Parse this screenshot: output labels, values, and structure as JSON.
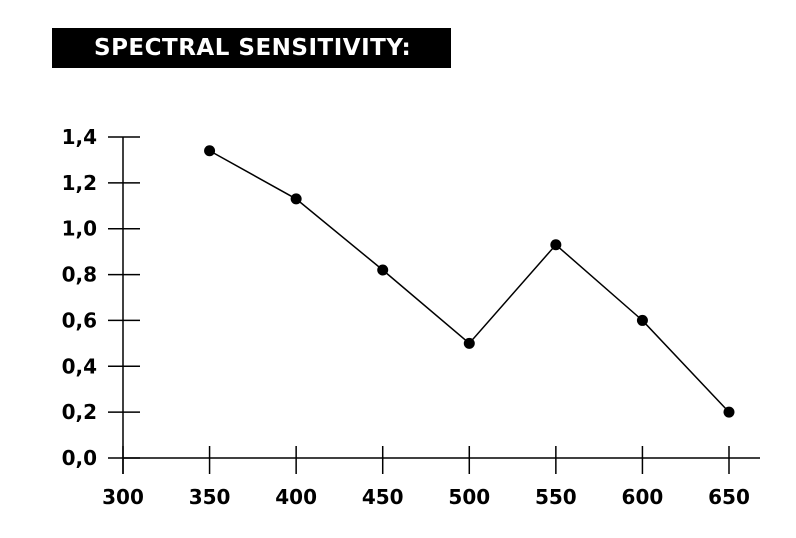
{
  "chart_data": {
    "type": "line",
    "title": "SPECTRAL SENSITIVITY:",
    "xlabel": "",
    "ylabel": "",
    "x": [
      350,
      400,
      450,
      500,
      550,
      600,
      650
    ],
    "series": [
      {
        "values": [
          1.34,
          1.13,
          0.82,
          0.5,
          0.93,
          0.6,
          0.2
        ]
      }
    ],
    "xlim": [
      300,
      650
    ],
    "ylim": [
      0,
      1.4
    ],
    "x_ticks": [
      "300",
      "350",
      "400",
      "450",
      "500",
      "550",
      "600",
      "650"
    ],
    "y_ticks": [
      "0,0",
      "0,2",
      "0,4",
      "0,6",
      "0,8",
      "1,0",
      "1,2",
      "1,4"
    ],
    "grid": false,
    "colors": {
      "line": "#000000",
      "marker": "#000000",
      "title_bg": "#000000",
      "title_text": "#ffffff"
    }
  }
}
